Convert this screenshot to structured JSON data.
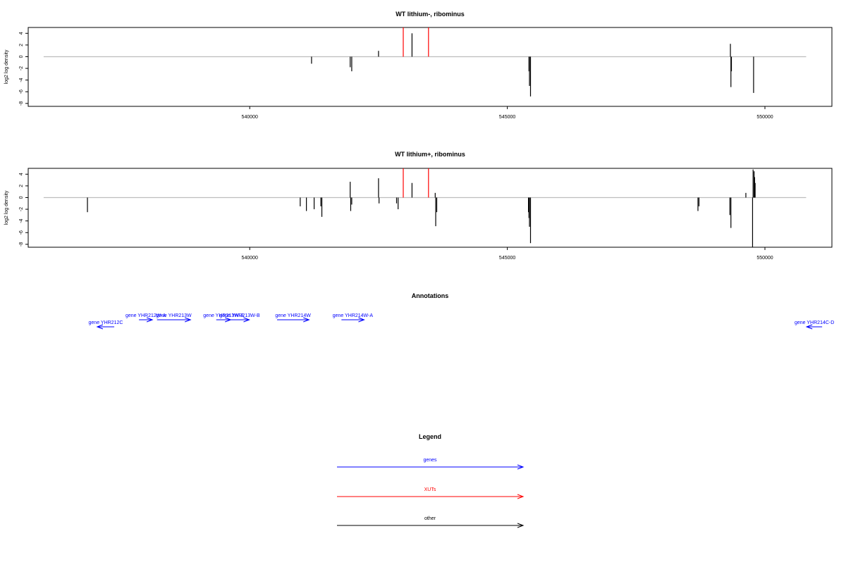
{
  "chart_data": [
    {
      "type": "bar",
      "title": "WT lithium-, ribominus",
      "ylabel": "log2 log density",
      "xlabel": "",
      "xlim": [
        535700,
        551300
      ],
      "ylim": [
        -8.5,
        5
      ],
      "x_ticks": [
        540000,
        545000,
        550000
      ],
      "x_tick_labels": [
        "540000",
        "545000",
        "550000"
      ],
      "y_ticks": [
        4,
        2,
        0,
        -2,
        -4,
        -6,
        -8
      ],
      "y_tick_labels": [
        "4",
        "2",
        "0",
        "-2",
        "-4",
        "-6",
        "-8"
      ],
      "baseline": [
        536000,
        550800
      ],
      "grid": false,
      "series": [
        {
          "color": "#000000",
          "points": [
            [
              541200,
              -1.2
            ],
            [
              541950,
              -1.8
            ],
            [
              541980,
              -2.5
            ],
            [
              542500,
              1.0
            ],
            [
              543150,
              4.0
            ],
            [
              545420,
              -2.5
            ],
            [
              545430,
              -5.0
            ],
            [
              545450,
              -6.8
            ],
            [
              549330,
              2.2
            ],
            [
              549340,
              -5.2
            ],
            [
              549350,
              -2.5
            ],
            [
              549780,
              -6.2
            ]
          ]
        },
        {
          "color": "#ff0000",
          "points": [
            [
              542980,
              5.0
            ],
            [
              543470,
              5.0
            ]
          ]
        }
      ]
    },
    {
      "type": "bar",
      "title": "WT lithium+, ribominus",
      "ylabel": "log2 log density",
      "xlabel": "",
      "xlim": [
        535700,
        551300
      ],
      "ylim": [
        -8.5,
        5
      ],
      "x_ticks": [
        540000,
        545000,
        550000
      ],
      "x_tick_labels": [
        "540000",
        "545000",
        "550000"
      ],
      "y_ticks": [
        4,
        2,
        0,
        -2,
        -4,
        -6,
        -8
      ],
      "y_tick_labels": [
        "4",
        "2",
        "0",
        "-2",
        "-4",
        "-6",
        "-8"
      ],
      "baseline": [
        536000,
        550800
      ],
      "grid": false,
      "series": [
        {
          "color": "#000000",
          "points": [
            [
              536850,
              -2.5
            ],
            [
              540980,
              -1.5
            ],
            [
              541100,
              -2.3
            ],
            [
              541250,
              -2.0
            ],
            [
              541380,
              -1.5
            ],
            [
              541400,
              -3.3
            ],
            [
              541950,
              2.7
            ],
            [
              541960,
              -2.3
            ],
            [
              541980,
              -1.2
            ],
            [
              542500,
              3.3
            ],
            [
              542510,
              -1.0
            ],
            [
              542850,
              -1.0
            ],
            [
              542880,
              -2.0
            ],
            [
              543150,
              2.5
            ],
            [
              543600,
              0.8
            ],
            [
              543610,
              -4.9
            ],
            [
              543630,
              -2.5
            ],
            [
              545410,
              -2.5
            ],
            [
              545420,
              -3.5
            ],
            [
              545430,
              -5.0
            ],
            [
              545450,
              -7.8
            ],
            [
              548700,
              -2.3
            ],
            [
              548720,
              -1.5
            ],
            [
              549320,
              -3.0
            ],
            [
              549340,
              -5.2
            ],
            [
              549630,
              0.8
            ],
            [
              549760,
              -8.5
            ],
            [
              549770,
              4.8
            ],
            [
              549790,
              4.5
            ],
            [
              549800,
              3.5
            ],
            [
              549810,
              2.5
            ]
          ]
        },
        {
          "color": "#ff0000",
          "points": [
            [
              542980,
              5.0
            ],
            [
              543470,
              5.0
            ]
          ]
        }
      ]
    }
  ],
  "annotations": {
    "title": "Annotations",
    "color": "#0000ff",
    "xlim": [
      535700,
      551300
    ],
    "genes": [
      {
        "label": "gene YHR212C",
        "start": 537370,
        "end": 537040,
        "row": 1
      },
      {
        "label": "gene YHR212W-A",
        "start": 537850,
        "end": 538110,
        "row": 0
      },
      {
        "label": "gene YHR213W",
        "start": 538200,
        "end": 538850,
        "row": 0
      },
      {
        "label": "gene YHR213W-A",
        "start": 539350,
        "end": 539630,
        "row": 0
      },
      {
        "label": "gene YHR213W-B",
        "start": 539620,
        "end": 539990,
        "row": 0
      },
      {
        "label": "gene YHR214W",
        "start": 540530,
        "end": 541150,
        "row": 0
      },
      {
        "label": "gene YHR214W-A",
        "start": 541780,
        "end": 542220,
        "row": 0
      },
      {
        "label": "gene YHR214C-D",
        "start": 551110,
        "end": 550810,
        "row": 1
      }
    ]
  },
  "legend": {
    "title": "Legend",
    "items": [
      {
        "label": "genes",
        "color": "#0000ff"
      },
      {
        "label": "XUTs",
        "color": "#ff0000"
      },
      {
        "label": "other",
        "color": "#000000"
      }
    ]
  }
}
